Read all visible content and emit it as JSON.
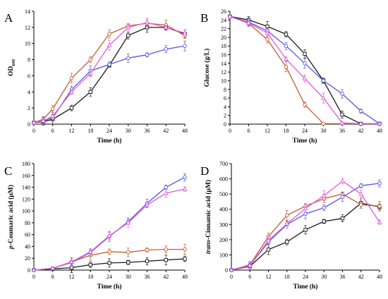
{
  "series_colors": [
    "#1a1a1a",
    "#c65a2e",
    "#5a55e0",
    "#e05ae0"
  ],
  "chart_data": [
    {
      "panel": "A",
      "type": "line",
      "xlabel": "Time (h)",
      "ylabel": "OD",
      "ylabel_sub": "600",
      "ylabel_style": "normal",
      "xlim": [
        0,
        48
      ],
      "ylim": [
        0,
        14
      ],
      "xticks": [
        0,
        6,
        12,
        18,
        24,
        30,
        36,
        42,
        48
      ],
      "yticks": [
        0,
        2,
        4,
        6,
        8,
        10,
        12,
        14
      ],
      "x": [
        0,
        3,
        6,
        12,
        18,
        24,
        30,
        36,
        42,
        48
      ],
      "series": [
        {
          "color": "#1a1a1a",
          "marker": "square",
          "values": [
            0.2,
            0.3,
            0.6,
            2.0,
            4.0,
            7.3,
            11.0,
            12.0,
            12.0,
            11.2
          ]
        },
        {
          "color": "#c65a2e",
          "marker": "circle",
          "values": [
            0.2,
            0.6,
            1.9,
            5.7,
            8.0,
            11.2,
            12.2,
            12.5,
            12.3,
            11.0
          ]
        },
        {
          "color": "#5a55e0",
          "marker": "circle",
          "values": [
            0.2,
            0.4,
            0.8,
            4.3,
            6.6,
            7.4,
            8.2,
            8.6,
            9.3,
            9.7
          ]
        },
        {
          "color": "#e05ae0",
          "marker": "triangle",
          "values": [
            0.2,
            0.4,
            1.0,
            4.0,
            6.3,
            9.8,
            12.0,
            12.6,
            12.0,
            11.3
          ]
        }
      ]
    },
    {
      "panel": "B",
      "type": "line",
      "xlabel": "Time (h)",
      "ylabel": "Glucose (g/L)",
      "ylabel_style": "normal",
      "xlim": [
        0,
        48
      ],
      "ylim": [
        0,
        26
      ],
      "xticks": [
        0,
        6,
        12,
        18,
        24,
        30,
        36,
        42,
        48
      ],
      "yticks": [
        0,
        2,
        4,
        6,
        8,
        10,
        12,
        14,
        16,
        18,
        20,
        22,
        24,
        26
      ],
      "x": [
        0,
        6,
        12,
        18,
        24,
        30,
        36,
        42,
        48
      ],
      "series": [
        {
          "color": "#1a1a1a",
          "marker": "square",
          "values": [
            24.8,
            24.0,
            22.5,
            20.7,
            16.2,
            10.0,
            2.2,
            0.1,
            0.1
          ]
        },
        {
          "color": "#c65a2e",
          "marker": "circle",
          "values": [
            24.8,
            23.2,
            19.5,
            13.2,
            4.5,
            0.1,
            0.1,
            0.1,
            0.1
          ]
        },
        {
          "color": "#5a55e0",
          "marker": "circle",
          "values": [
            24.8,
            23.5,
            21.5,
            18.0,
            14.0,
            10.0,
            7.0,
            3.0,
            0.1
          ]
        },
        {
          "color": "#e05ae0",
          "marker": "triangle",
          "values": [
            24.8,
            23.3,
            21.0,
            15.0,
            10.5,
            6.0,
            0.3,
            0.1,
            0.1
          ]
        }
      ]
    },
    {
      "panel": "C",
      "type": "line",
      "xlabel": "Time (h)",
      "ylabel_prefix": "p",
      "ylabel": "-Coumaric acid (μM)",
      "ylabel_style": "italic-prefix",
      "xlim": [
        0,
        48
      ],
      "ylim": [
        0,
        180
      ],
      "xticks": [
        0,
        6,
        12,
        18,
        24,
        30,
        36,
        42,
        48
      ],
      "yticks": [
        0,
        20,
        40,
        60,
        80,
        100,
        120,
        140,
        160,
        180
      ],
      "x": [
        0,
        6,
        12,
        18,
        24,
        30,
        36,
        42,
        48
      ],
      "series": [
        {
          "color": "#1a1a1a",
          "marker": "square",
          "values": [
            0,
            2,
            4,
            9,
            12,
            13,
            15,
            17,
            19
          ]
        },
        {
          "color": "#c65a2e",
          "marker": "circle",
          "values": [
            0,
            3,
            14,
            25,
            31,
            30,
            34,
            35,
            35
          ]
        },
        {
          "color": "#5a55e0",
          "marker": "circle",
          "values": [
            0,
            3,
            13,
            30,
            57,
            82,
            113,
            140,
            157
          ]
        },
        {
          "color": "#e05ae0",
          "marker": "triangle",
          "values": [
            0,
            3,
            14,
            31,
            58,
            80,
            110,
            130,
            137
          ]
        }
      ]
    },
    {
      "panel": "D",
      "type": "line",
      "xlabel": "Time (h)",
      "ylabel_prefix": "trans",
      "ylabel": "-Cinnamic acid (μM)",
      "ylabel_style": "italic-prefix",
      "xlim": [
        0,
        48
      ],
      "ylim": [
        0,
        700
      ],
      "xticks": [
        0,
        6,
        12,
        18,
        24,
        30,
        36,
        42,
        48
      ],
      "yticks": [
        0,
        100,
        200,
        300,
        400,
        500,
        600,
        700
      ],
      "x": [
        0,
        6,
        12,
        18,
        24,
        30,
        36,
        42,
        48
      ],
      "series": [
        {
          "color": "#1a1a1a",
          "marker": "square",
          "values": [
            0,
            25,
            135,
            185,
            265,
            320,
            340,
            440,
            415
          ]
        },
        {
          "color": "#c65a2e",
          "marker": "circle",
          "values": [
            0,
            35,
            220,
            360,
            420,
            470,
            500,
            430,
            420
          ]
        },
        {
          "color": "#5a55e0",
          "marker": "circle",
          "values": [
            0,
            30,
            185,
            300,
            370,
            410,
            480,
            555,
            570
          ]
        },
        {
          "color": "#e05ae0",
          "marker": "triangle",
          "values": [
            0,
            30,
            195,
            305,
            405,
            490,
            585,
            500,
            315
          ]
        }
      ]
    }
  ]
}
